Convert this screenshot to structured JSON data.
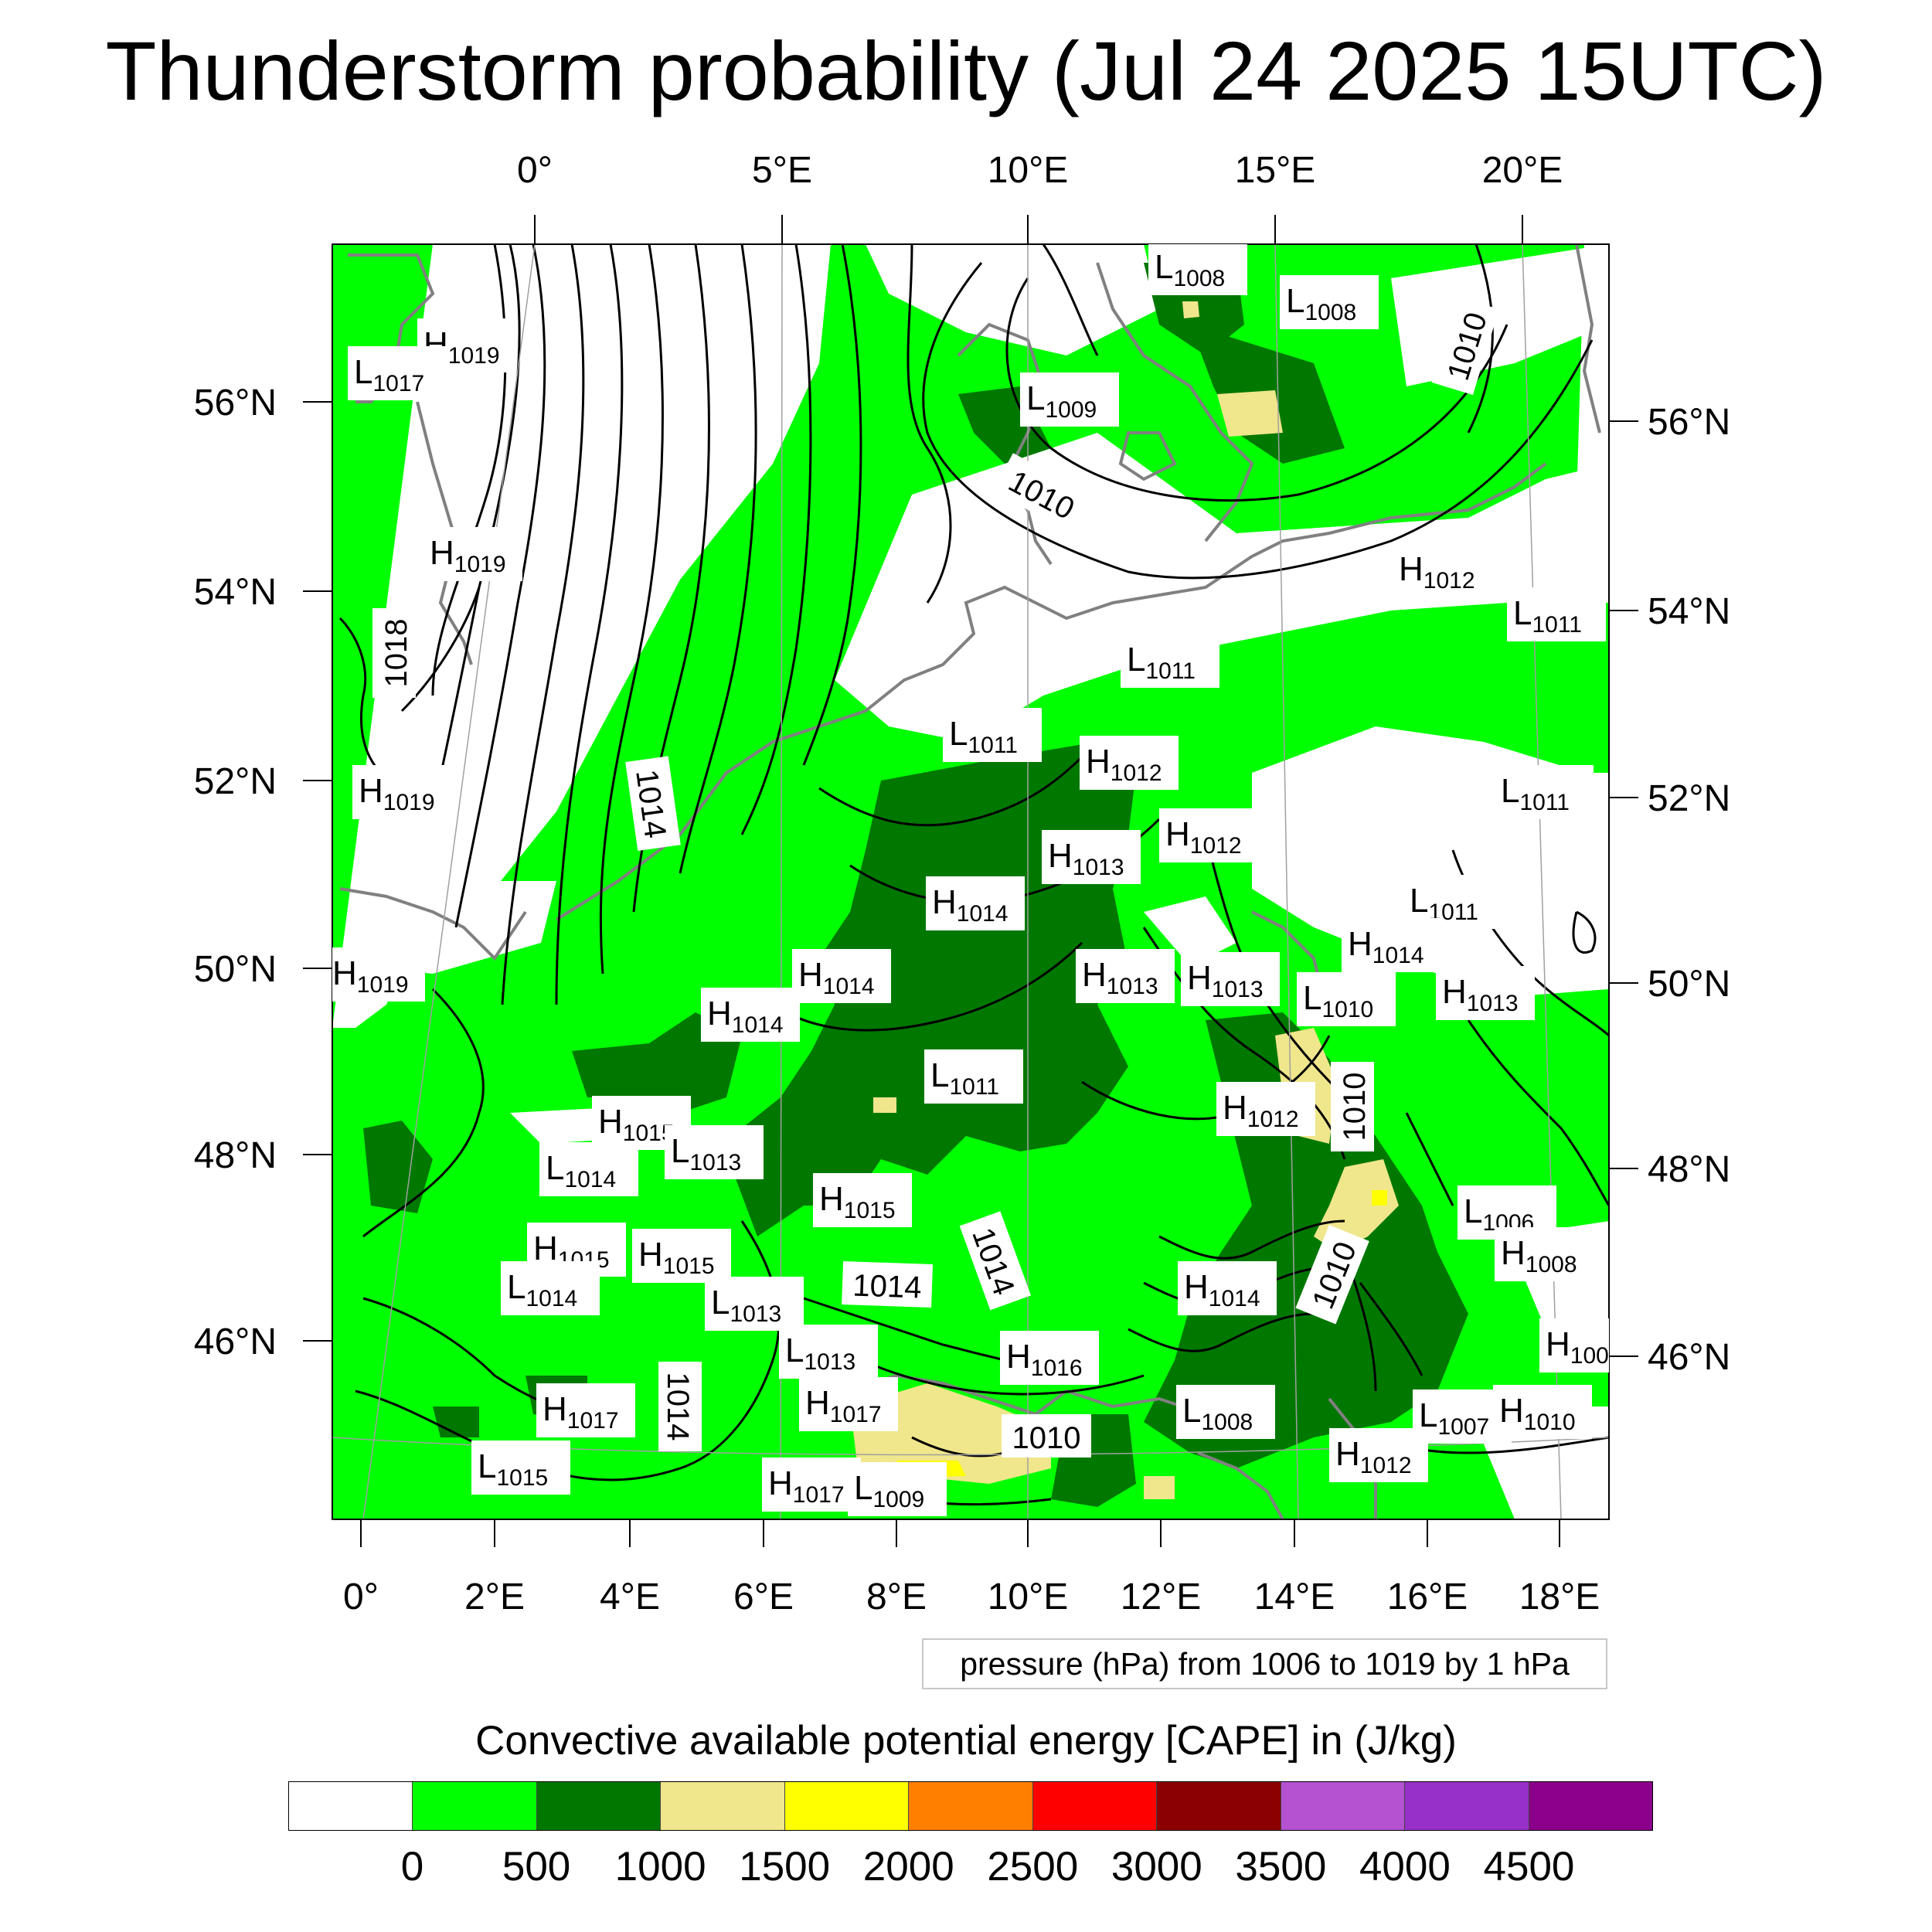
{
  "title": "Thunderstorm probability (Jul 24 2025 15UTC)",
  "top_lon_labels": [
    "0°",
    "5°E",
    "10°E",
    "15°E",
    "20°E"
  ],
  "bottom_lon_labels": [
    "0°",
    "2°E",
    "4°E",
    "6°E",
    "8°E",
    "10°E",
    "12°E",
    "14°E",
    "16°E",
    "18°E"
  ],
  "left_lat_labels": [
    "56°N",
    "54°N",
    "52°N",
    "50°N",
    "48°N",
    "46°N"
  ],
  "right_lat_labels": [
    "56°N",
    "54°N",
    "52°N",
    "50°N",
    "48°N",
    "46°N"
  ],
  "pressure_centers": [
    {
      "t": "L",
      "v": "1008"
    },
    {
      "t": "L",
      "v": "1008"
    },
    {
      "t": "H",
      "v": "1019"
    },
    {
      "t": "L",
      "v": "1017"
    },
    {
      "t": "L",
      "v": "1009"
    },
    {
      "t": "H",
      "v": "1019"
    },
    {
      "t": "H",
      "v": "1012"
    },
    {
      "t": "L",
      "v": "1011"
    },
    {
      "t": "L",
      "v": "1011"
    },
    {
      "t": "L",
      "v": "1011"
    },
    {
      "t": "H",
      "v": "1012"
    },
    {
      "t": "H",
      "v": "1019"
    },
    {
      "t": "L",
      "v": "1011"
    },
    {
      "t": "H",
      "v": "1012"
    },
    {
      "t": "H",
      "v": "1013"
    },
    {
      "t": "H",
      "v": "1014"
    },
    {
      "t": "L",
      "v": "1011"
    },
    {
      "t": "H",
      "v": "1014"
    },
    {
      "t": "H",
      "v": "1014"
    },
    {
      "t": "H",
      "v": "1013"
    },
    {
      "t": "H",
      "v": "1013"
    },
    {
      "t": "L",
      "v": "1010"
    },
    {
      "t": "H",
      "v": "1013"
    },
    {
      "t": "H",
      "v": "1019"
    },
    {
      "t": "H",
      "v": "1014"
    },
    {
      "t": "L",
      "v": "1011"
    },
    {
      "t": "H",
      "v": "1012"
    },
    {
      "t": "H",
      "v": "1015"
    },
    {
      "t": "L",
      "v": "1013"
    },
    {
      "t": "L",
      "v": "1014"
    },
    {
      "t": "H",
      "v": "1015"
    },
    {
      "t": "L",
      "v": "1006"
    },
    {
      "t": "H",
      "v": "1015"
    },
    {
      "t": "H",
      "v": "1015"
    },
    {
      "t": "H",
      "v": "1008"
    },
    {
      "t": "L",
      "v": "1014"
    },
    {
      "t": "L",
      "v": "1013"
    },
    {
      "t": "H",
      "v": "1014"
    },
    {
      "t": "H",
      "v": "100"
    },
    {
      "t": "L",
      "v": "1013"
    },
    {
      "t": "H",
      "v": "1016"
    },
    {
      "t": "H",
      "v": "1017"
    },
    {
      "t": "H",
      "v": "1017"
    },
    {
      "t": "L",
      "v": "1008"
    },
    {
      "t": "L",
      "v": "1007"
    },
    {
      "t": "H",
      "v": "1010"
    },
    {
      "t": "H",
      "v": "1012"
    },
    {
      "t": "L",
      "v": "1015"
    },
    {
      "t": "H",
      "v": "1017"
    },
    {
      "t": "L",
      "v": "1009"
    }
  ],
  "isobar_labels": [
    "1010",
    "1010",
    "1018",
    "1014",
    "1014",
    "1010",
    "1010",
    "1014",
    "1014",
    "1010"
  ],
  "pressure_caption": "pressure (hPa) from 1006 to 1019 by 1 hPa",
  "colorbar": {
    "title": "Convective available potential energy [CAPE] in (J/kg)",
    "colors": [
      "#ffffff",
      "#00ff00",
      "#007800",
      "#f0e68c",
      "#ffff00",
      "#ff8000",
      "#ff0000",
      "#8b0000",
      "#b452d2",
      "#9630c8",
      "#8a008a"
    ],
    "ticks": [
      "0",
      "500",
      "1000",
      "1500",
      "2000",
      "2500",
      "3000",
      "3500",
      "4000",
      "4500"
    ]
  }
}
